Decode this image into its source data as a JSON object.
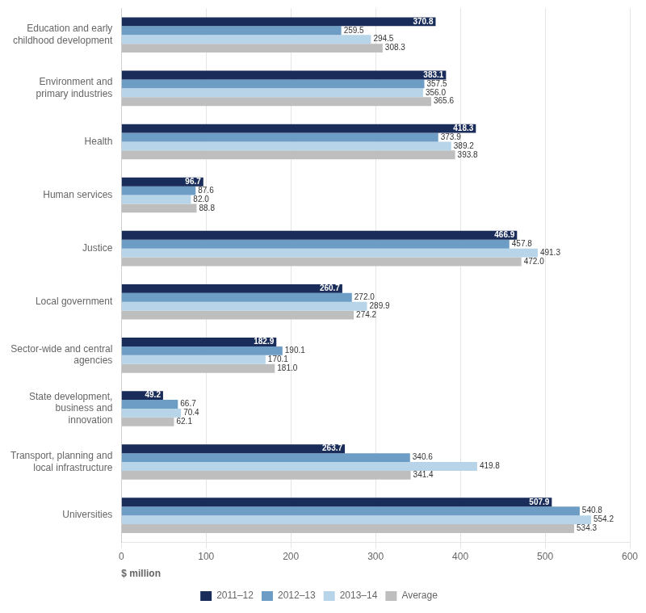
{
  "chart_data": {
    "type": "bar",
    "orientation": "horizontal",
    "categories": [
      "Education and early\nchildhood development",
      "Environment and\nprimary industries",
      "Health",
      "Human services",
      "Justice",
      "Local government",
      "Sector-wide and central\nagencies",
      "State development,\nbusiness and\ninnovation",
      "Transport, planning and\nlocal infrastructure",
      "Universities"
    ],
    "series": [
      {
        "name": "2011–12",
        "color": "#1a2d5a",
        "values": [
          370.8,
          383.1,
          418.3,
          96.7,
          466.9,
          260.7,
          182.9,
          49.2,
          263.7,
          507.9
        ],
        "value_labels": [
          "370.8",
          "383.1",
          "418.3",
          "96.7",
          "466.9",
          "260.7",
          "182.9",
          "49.2",
          "263.7",
          "507.9"
        ]
      },
      {
        "name": "2012–13",
        "color": "#6d9dc5",
        "values": [
          259.5,
          357.5,
          373.9,
          87.6,
          457.8,
          272.0,
          190.1,
          66.7,
          340.6,
          540.8
        ],
        "value_labels": [
          "259.5",
          "357.5",
          "373.9",
          "87.6",
          "457.8",
          "272.0",
          "190.1",
          "66.7",
          "340.6",
          "540.8"
        ]
      },
      {
        "name": "2013–14",
        "color": "#b8d4e8",
        "values": [
          294.5,
          356.0,
          389.2,
          82.0,
          491.3,
          289.9,
          170.1,
          70.4,
          419.8,
          554.2
        ],
        "value_labels": [
          "294.5",
          "356.0",
          "389.2",
          "82.0",
          "491.3",
          "289.9",
          "170.1",
          "70.4",
          "419.8",
          "554.2"
        ]
      },
      {
        "name": "Average",
        "color": "#bebebe",
        "values": [
          308.3,
          365.6,
          393.8,
          88.8,
          472.0,
          274.2,
          181.0,
          62.1,
          341.4,
          534.3
        ],
        "value_labels": [
          "308.3",
          "365.6",
          "393.8",
          "88.8",
          "472.0",
          "274.2",
          "181.0",
          "62.1",
          "341.4",
          "534.3"
        ]
      }
    ],
    "x_label": "$ million",
    "xlim": [
      0,
      600
    ],
    "xticks": [
      0,
      100,
      200,
      300,
      400,
      500,
      600
    ],
    "grid": true,
    "legend": "bottom",
    "data_labels": true
  }
}
